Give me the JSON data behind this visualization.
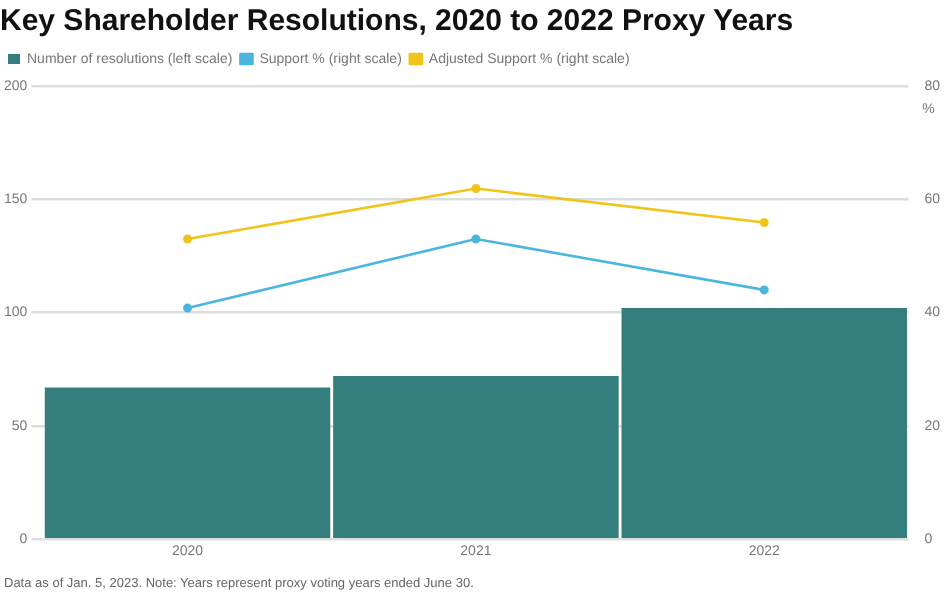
{
  "chart_data": {
    "type": "bar",
    "title": "Key Shareholder Resolutions, 2020 to 2022 Proxy Years",
    "categories": [
      "2020",
      "2021",
      "2022"
    ],
    "series": [
      {
        "name": "Number of resolutions (left scale)",
        "color": "#347e7d",
        "values": [
          67,
          72,
          102
        ]
      },
      {
        "name": "Support % (right scale)",
        "type": "line",
        "axis": "y2",
        "color": "#4bb6dd",
        "values": [
          40.8,
          53.0,
          44.0
        ]
      },
      {
        "name": "Adjusted Support % (right scale)",
        "type": "line",
        "axis": "y2",
        "color": "#f0c419",
        "values": [
          53.0,
          61.9,
          55.9
        ]
      }
    ],
    "ylim": [
      0,
      200
    ],
    "yticks": [
      0,
      50,
      100,
      150,
      200
    ],
    "y2lim": [
      0,
      80
    ],
    "y2ticks": [
      0,
      20,
      40,
      60,
      80
    ],
    "y2label": "%",
    "grid": "y",
    "legend": "top left",
    "marker": "circle",
    "annotations": [
      "Data as of Jan. 5, 2023. Note: Years represent proxy voting years ended June 30."
    ]
  }
}
